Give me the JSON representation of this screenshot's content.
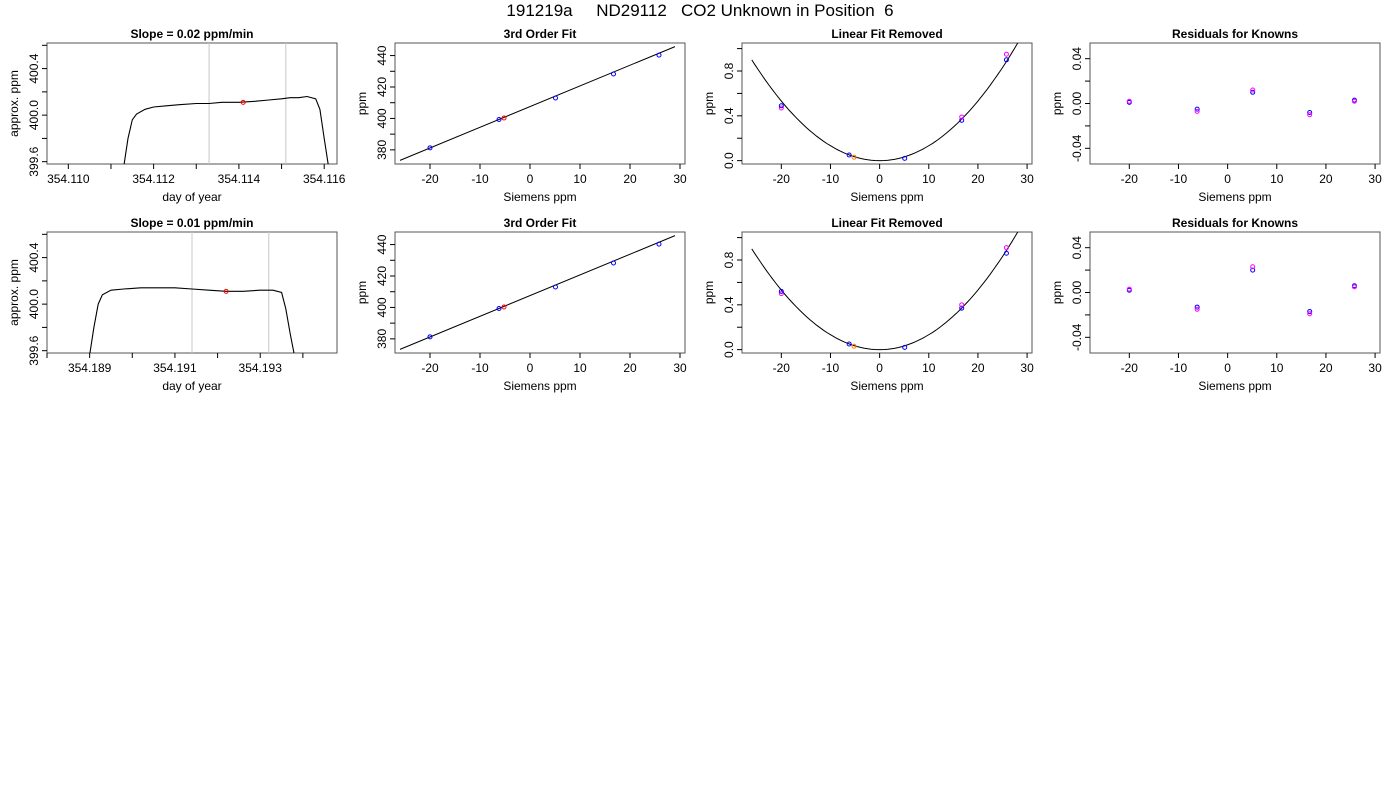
{
  "figure": {
    "title": "191219a     ND29112   CO2 Unknown in Position  6"
  },
  "chart_data": [
    {
      "type": "line",
      "title": "Slope =  0.02  ppm/min",
      "xlabel": "day of year",
      "ylabel": "approx. ppm",
      "xlim": [
        354.1095,
        354.1163
      ],
      "ylim": [
        399.58,
        400.62
      ],
      "xticks": [
        354.11,
        354.111,
        354.112,
        354.113,
        354.114,
        354.115,
        354.116
      ],
      "xticklabels": [
        "354.110",
        "",
        "354.112",
        "",
        "354.114",
        "",
        "354.116"
      ],
      "yticks": [
        399.6,
        399.8,
        400.0,
        400.2,
        400.4,
        400.6
      ],
      "yticklabels": [
        "399.6",
        "",
        "400.0",
        "",
        "400.4",
        ""
      ],
      "vlines": [
        354.1133,
        354.1151
      ],
      "grid": false,
      "series": [
        {
          "color": "#000000",
          "x": [
            354.1113,
            354.1114,
            354.1115,
            354.1116,
            354.1118,
            354.112,
            354.1123,
            354.1126,
            354.113,
            354.1133,
            354.1136,
            354.114,
            354.1144,
            354.1147,
            354.115,
            354.1152,
            354.1154,
            354.1156,
            354.1158,
            354.1159,
            354.116,
            354.1161
          ],
          "y": [
            399.56,
            399.8,
            399.96,
            400.01,
            400.05,
            400.07,
            400.08,
            400.09,
            400.1,
            400.1,
            400.11,
            400.11,
            400.12,
            400.13,
            400.14,
            400.15,
            400.15,
            400.16,
            400.14,
            400.05,
            399.8,
            399.56
          ]
        }
      ],
      "points": [
        {
          "x": 354.1141,
          "y": 400.11,
          "color": "#ff0000"
        }
      ]
    },
    {
      "type": "scatter",
      "title": "3rd Order Fit",
      "xlabel": "Siemens ppm",
      "ylabel": "ppm",
      "xlim": [
        -27,
        31
      ],
      "ylim": [
        371,
        448
      ],
      "xticks": [
        -20,
        -10,
        0,
        10,
        20,
        30
      ],
      "xticklabels": [
        "-20",
        "-10",
        "0",
        "10",
        "20",
        "30"
      ],
      "yticks": [
        380,
        390,
        400,
        410,
        420,
        430,
        440
      ],
      "yticklabels": [
        "380",
        "",
        "400",
        "",
        "420",
        "",
        "440"
      ],
      "fit_line": {
        "x": [
          -26,
          29
        ],
        "y": [
          373.3,
          445.7
        ]
      },
      "points": [
        {
          "x": -20.0,
          "y": 381.3,
          "color": "#0000ff"
        },
        {
          "x": -6.2,
          "y": 399.3,
          "color": "#0000ff"
        },
        {
          "x": -5.2,
          "y": 400.3,
          "color": "#ff0000"
        },
        {
          "x": 5.1,
          "y": 413.0,
          "color": "#0000ff"
        },
        {
          "x": 16.7,
          "y": 428.3,
          "color": "#0000ff"
        },
        {
          "x": 25.8,
          "y": 440.3,
          "color": "#0000ff"
        }
      ]
    },
    {
      "type": "scatter",
      "title": "Linear Fit Removed",
      "xlabel": "Siemens ppm",
      "ylabel": "ppm",
      "xlim": [
        -28,
        31
      ],
      "ylim": [
        -0.03,
        1.05
      ],
      "xticks": [
        -20,
        -10,
        0,
        10,
        20,
        30
      ],
      "xticklabels": [
        "-20",
        "-10",
        "0",
        "10",
        "20",
        "30"
      ],
      "yticks": [
        0.0,
        0.2,
        0.4,
        0.6,
        0.8,
        1.0
      ],
      "yticklabels": [
        "0.0",
        "",
        "0.4",
        "",
        "0.8",
        ""
      ],
      "curve_coeff": 0.00133,
      "curve_xrange": [
        -26,
        29.5
      ],
      "points": [
        {
          "x": -20.0,
          "y": 0.47,
          "color": "#ff00ff"
        },
        {
          "x": -20.0,
          "y": 0.49,
          "color": "#0000ff"
        },
        {
          "x": -6.2,
          "y": 0.05,
          "color": "#0000ff"
        },
        {
          "x": -5.2,
          "y": 0.03,
          "color": "#ff7f00"
        },
        {
          "x": 5.1,
          "y": 0.02,
          "color": "#0000ff"
        },
        {
          "x": 16.7,
          "y": 0.36,
          "color": "#0000ff"
        },
        {
          "x": 16.7,
          "y": 0.39,
          "color": "#ff00ff"
        },
        {
          "x": 25.8,
          "y": 0.9,
          "color": "#0000ff"
        },
        {
          "x": 25.8,
          "y": 0.95,
          "color": "#ff00ff"
        }
      ]
    },
    {
      "type": "scatter",
      "title": "Residuals for Knowns",
      "xlabel": "Siemens ppm",
      "ylabel": "ppm",
      "xlim": [
        -28,
        31
      ],
      "ylim": [
        -0.054,
        0.054
      ],
      "xticks": [
        -20,
        -10,
        0,
        10,
        20,
        30
      ],
      "xticklabels": [
        "-20",
        "-10",
        "0",
        "10",
        "20",
        "30"
      ],
      "yticks": [
        -0.04,
        -0.02,
        0.0,
        0.02,
        0.04
      ],
      "yticklabels": [
        "-0.04",
        "",
        "0.00",
        "",
        "0.04"
      ],
      "points": [
        {
          "x": -20.0,
          "y": 0.001,
          "color": "#0000ff"
        },
        {
          "x": -20.0,
          "y": 0.002,
          "color": "#ff00ff"
        },
        {
          "x": -6.2,
          "y": -0.005,
          "color": "#0000ff"
        },
        {
          "x": -6.2,
          "y": -0.007,
          "color": "#ff00ff"
        },
        {
          "x": 5.1,
          "y": 0.01,
          "color": "#0000ff"
        },
        {
          "x": 5.1,
          "y": 0.012,
          "color": "#ff00ff"
        },
        {
          "x": 16.7,
          "y": -0.008,
          "color": "#0000ff"
        },
        {
          "x": 16.7,
          "y": -0.01,
          "color": "#ff00ff"
        },
        {
          "x": 25.8,
          "y": 0.003,
          "color": "#0000ff"
        },
        {
          "x": 25.8,
          "y": 0.002,
          "color": "#ff00ff"
        }
      ]
    },
    {
      "type": "line",
      "title": "Slope =  0.01  ppm/min",
      "xlabel": "day of year",
      "ylabel": "approx. ppm",
      "xlim": [
        354.188,
        354.1948
      ],
      "ylim": [
        399.58,
        400.62
      ],
      "xticks": [
        354.188,
        354.189,
        354.19,
        354.191,
        354.192,
        354.193,
        354.194
      ],
      "xticklabels": [
        "",
        "354.189",
        "",
        "354.191",
        "",
        "354.193",
        ""
      ],
      "yticks": [
        399.6,
        399.8,
        400.0,
        400.2,
        400.4,
        400.6
      ],
      "yticklabels": [
        "399.6",
        "",
        "400.0",
        "",
        "400.4",
        ""
      ],
      "vlines": [
        354.1914,
        354.1932
      ],
      "grid": false,
      "series": [
        {
          "color": "#000000",
          "x": [
            354.189,
            354.1891,
            354.1892,
            354.1893,
            354.1895,
            354.1898,
            354.1902,
            354.1906,
            354.191,
            354.1914,
            354.1918,
            354.1922,
            354.1926,
            354.193,
            354.1933,
            354.1935,
            354.1936,
            354.1937,
            354.1938
          ],
          "y": [
            399.56,
            399.8,
            400.0,
            400.08,
            400.12,
            400.13,
            400.14,
            400.14,
            400.14,
            400.13,
            400.12,
            400.11,
            400.11,
            400.12,
            400.12,
            400.1,
            399.96,
            399.75,
            399.56
          ]
        }
      ],
      "points": [
        {
          "x": 354.1922,
          "y": 400.11,
          "color": "#ff0000"
        }
      ]
    },
    {
      "type": "scatter",
      "title": "3rd Order Fit",
      "xlabel": "Siemens ppm",
      "ylabel": "ppm",
      "xlim": [
        -27,
        31
      ],
      "ylim": [
        371,
        448
      ],
      "xticks": [
        -20,
        -10,
        0,
        10,
        20,
        30
      ],
      "xticklabels": [
        "-20",
        "-10",
        "0",
        "10",
        "20",
        "30"
      ],
      "yticks": [
        380,
        390,
        400,
        410,
        420,
        430,
        440
      ],
      "yticklabels": [
        "380",
        "",
        "400",
        "",
        "420",
        "",
        "440"
      ],
      "fit_line": {
        "x": [
          -26,
          29
        ],
        "y": [
          373.3,
          445.7
        ]
      },
      "points": [
        {
          "x": -20.0,
          "y": 381.3,
          "color": "#0000ff"
        },
        {
          "x": -6.2,
          "y": 399.3,
          "color": "#0000ff"
        },
        {
          "x": -5.2,
          "y": 400.3,
          "color": "#ff0000"
        },
        {
          "x": 5.1,
          "y": 413.0,
          "color": "#0000ff"
        },
        {
          "x": 16.7,
          "y": 428.3,
          "color": "#0000ff"
        },
        {
          "x": 25.8,
          "y": 440.3,
          "color": "#0000ff"
        }
      ]
    },
    {
      "type": "scatter",
      "title": "Linear Fit Removed",
      "xlabel": "Siemens ppm",
      "ylabel": "ppm",
      "xlim": [
        -28,
        31
      ],
      "ylim": [
        -0.03,
        1.05
      ],
      "xticks": [
        -20,
        -10,
        0,
        10,
        20,
        30
      ],
      "xticklabels": [
        "-20",
        "-10",
        "0",
        "10",
        "20",
        "30"
      ],
      "yticks": [
        0.0,
        0.2,
        0.4,
        0.6,
        0.8,
        1.0
      ],
      "yticklabels": [
        "0.0",
        "",
        "0.4",
        "",
        "0.8",
        ""
      ],
      "curve_coeff": 0.00133,
      "curve_xrange": [
        -26,
        29.5
      ],
      "points": [
        {
          "x": -20.0,
          "y": 0.5,
          "color": "#ff00ff"
        },
        {
          "x": -20.0,
          "y": 0.52,
          "color": "#0000ff"
        },
        {
          "x": -6.2,
          "y": 0.05,
          "color": "#0000ff"
        },
        {
          "x": -5.2,
          "y": 0.03,
          "color": "#ff7f00"
        },
        {
          "x": 5.1,
          "y": 0.02,
          "color": "#0000ff"
        },
        {
          "x": 16.7,
          "y": 0.37,
          "color": "#0000ff"
        },
        {
          "x": 16.7,
          "y": 0.4,
          "color": "#ff00ff"
        },
        {
          "x": 25.8,
          "y": 0.86,
          "color": "#0000ff"
        },
        {
          "x": 25.8,
          "y": 0.91,
          "color": "#ff00ff"
        }
      ]
    },
    {
      "type": "scatter",
      "title": "Residuals for Knowns",
      "xlabel": "Siemens ppm",
      "ylabel": "ppm",
      "xlim": [
        -28,
        31
      ],
      "ylim": [
        -0.054,
        0.054
      ],
      "xticks": [
        -20,
        -10,
        0,
        10,
        20,
        30
      ],
      "xticklabels": [
        "-20",
        "-10",
        "0",
        "10",
        "20",
        "30"
      ],
      "yticks": [
        -0.04,
        -0.02,
        0.0,
        0.02,
        0.04
      ],
      "yticklabels": [
        "-0.04",
        "",
        "0.00",
        "",
        "0.04"
      ],
      "points": [
        {
          "x": -20.0,
          "y": 0.002,
          "color": "#0000ff"
        },
        {
          "x": -20.0,
          "y": 0.003,
          "color": "#ff00ff"
        },
        {
          "x": -6.2,
          "y": -0.013,
          "color": "#0000ff"
        },
        {
          "x": -6.2,
          "y": -0.015,
          "color": "#ff00ff"
        },
        {
          "x": 5.1,
          "y": 0.02,
          "color": "#0000ff"
        },
        {
          "x": 5.1,
          "y": 0.023,
          "color": "#ff00ff"
        },
        {
          "x": 16.7,
          "y": -0.017,
          "color": "#0000ff"
        },
        {
          "x": 16.7,
          "y": -0.019,
          "color": "#ff00ff"
        },
        {
          "x": 25.8,
          "y": 0.006,
          "color": "#0000ff"
        },
        {
          "x": 25.8,
          "y": 0.005,
          "color": "#ff00ff"
        }
      ]
    }
  ]
}
